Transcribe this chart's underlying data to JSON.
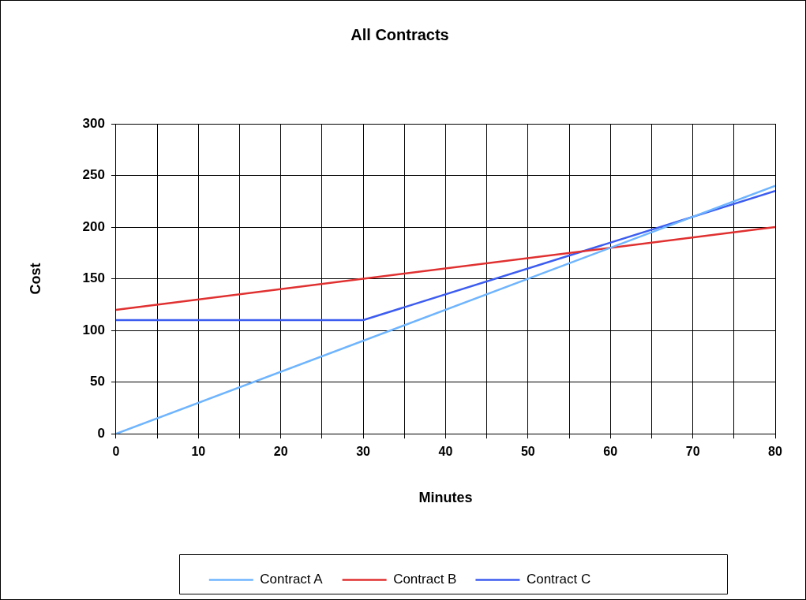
{
  "chart_data": {
    "type": "line",
    "title": "All Contracts",
    "xlabel": "Minutes",
    "ylabel": "Cost",
    "series": [
      {
        "name": "Contract A",
        "color": "#6eb4ff",
        "x": [
          0,
          80
        ],
        "values": [
          0,
          240
        ]
      },
      {
        "name": "Contract B",
        "color": "#e03030",
        "x": [
          0,
          80
        ],
        "values": [
          120,
          200
        ]
      },
      {
        "name": "Contract C",
        "color": "#3c5cf0",
        "x": [
          0,
          30,
          80
        ],
        "values": [
          110,
          110,
          235
        ]
      }
    ],
    "xlim": [
      0,
      80
    ],
    "xticks": [
      0,
      {
        "value": 5,
        "label": null
      },
      10,
      {
        "value": 15,
        "label": null
      },
      20,
      {
        "value": 25,
        "label": null
      },
      30,
      {
        "value": 35,
        "label": null
      },
      40,
      {
        "value": 45,
        "label": null
      },
      50,
      {
        "value": 55,
        "label": null
      },
      60,
      {
        "value": 65,
        "label": null
      },
      70,
      {
        "value": 75,
        "label": null
      },
      80
    ],
    "ylim": [
      0,
      300
    ],
    "yticks": [
      0,
      50,
      100,
      150,
      200,
      250,
      300
    ],
    "grid": true,
    "legend": "bottom",
    "marker": "none",
    "line_style": "solid"
  }
}
